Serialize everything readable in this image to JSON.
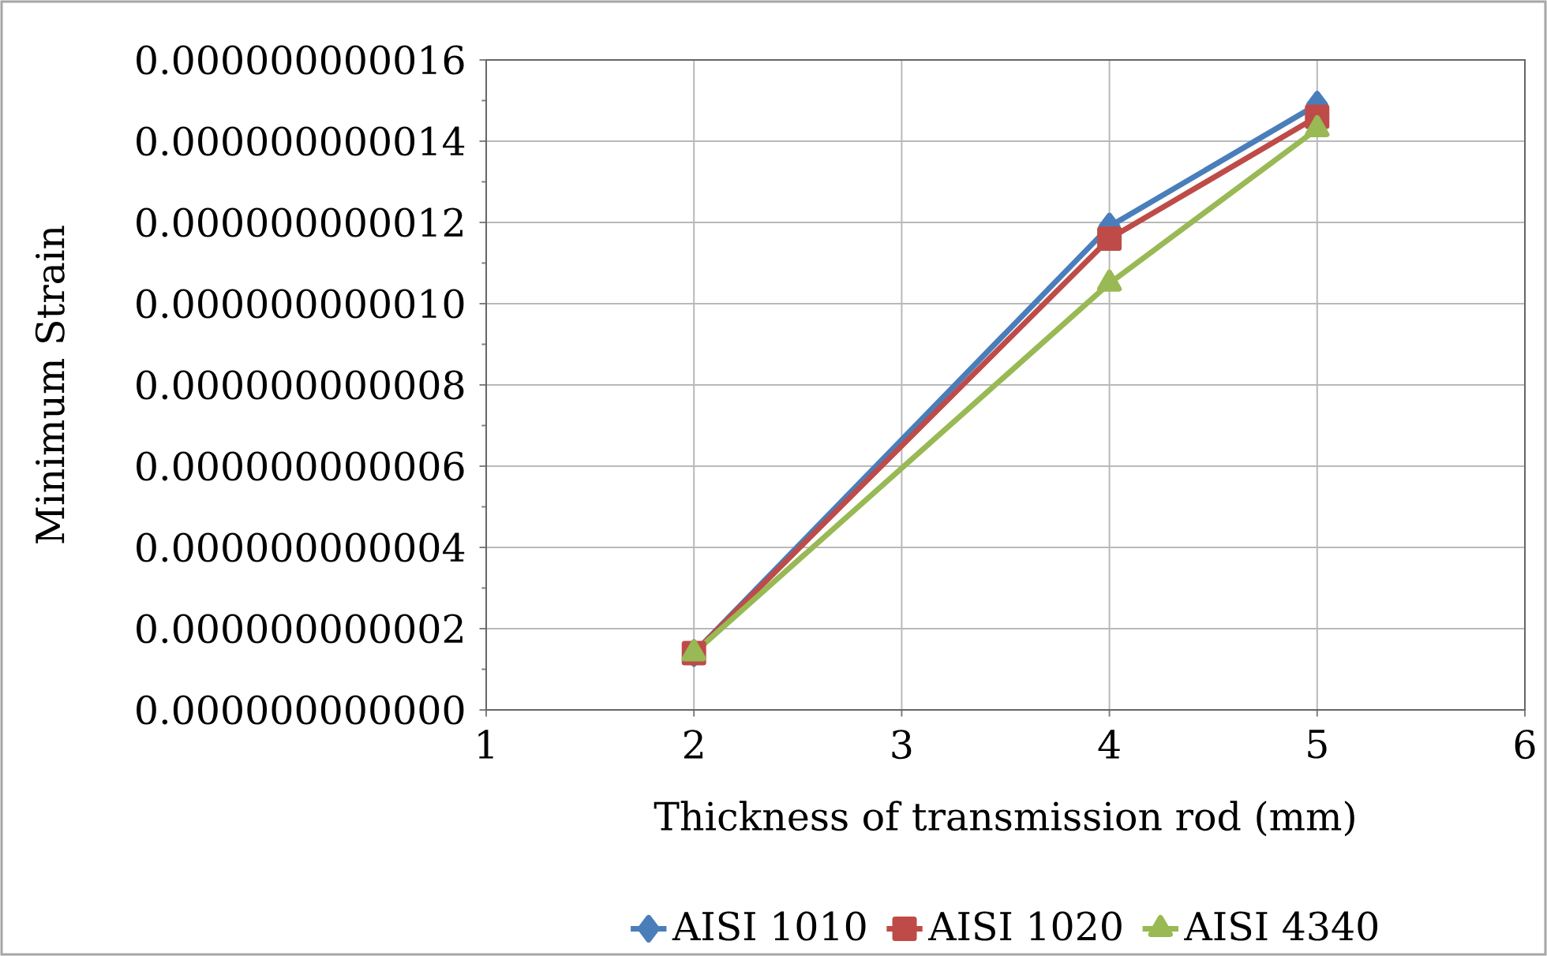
{
  "chart_data": {
    "type": "line",
    "xlabel": "Thickness of transmission rod (mm)",
    "ylabel": "Minimum Strain",
    "x": [
      2,
      4,
      5
    ],
    "series": [
      {
        "name": "AISI 1010",
        "color": "#4a7ebb",
        "marker": "diamond",
        "values": [
          1.4e-12,
          1.19e-11,
          1.49e-11
        ]
      },
      {
        "name": "AISI 1020",
        "color": "#be4b48",
        "marker": "square",
        "values": [
          1.4e-12,
          1.16e-11,
          1.46e-11
        ]
      },
      {
        "name": "AISI 4340",
        "color": "#98b954",
        "marker": "triangle",
        "values": [
          1.4e-12,
          1.05e-11,
          1.43e-11
        ]
      }
    ],
    "xlim": [
      1,
      6
    ],
    "xticks": [
      1,
      2,
      3,
      4,
      5,
      6
    ],
    "ylim": [
      0,
      1.6e-11
    ],
    "yticks": [
      {
        "value": 0,
        "label": "0.000000000000"
      },
      {
        "value": 2e-12,
        "label": "0.000000000002"
      },
      {
        "value": 4e-12,
        "label": "0.000000000004"
      },
      {
        "value": 6e-12,
        "label": "0.000000000006"
      },
      {
        "value": 8e-12,
        "label": "0.000000000008"
      },
      {
        "value": 1e-11,
        "label": "0.000000000010"
      },
      {
        "value": 1.2e-11,
        "label": "0.000000000012"
      },
      {
        "value": 1.4e-11,
        "label": "0.000000000014"
      },
      {
        "value": 1.6e-11,
        "label": "0.000000000016"
      }
    ],
    "grid": true,
    "legend": "bottom",
    "line_style": "solid"
  }
}
